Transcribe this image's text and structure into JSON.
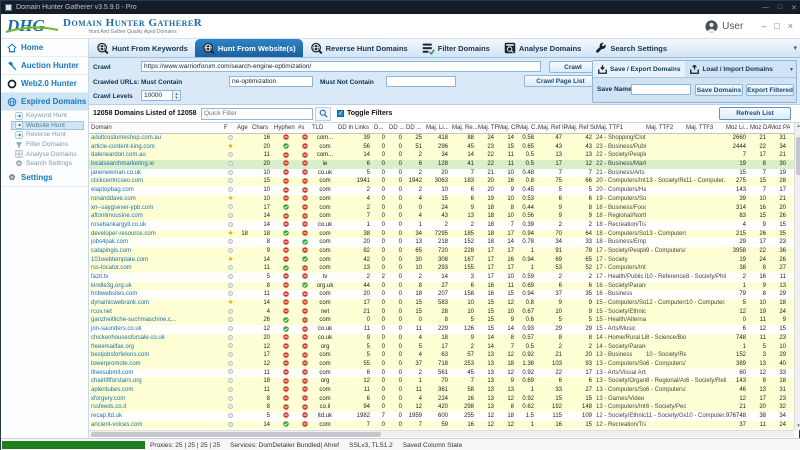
{
  "window": {
    "title": "Domain Hunter Gatherer v3.5.9.0 - Pro"
  },
  "header": {
    "logo_abbr": "DHG",
    "app_name": "Domain Hunter GathereR",
    "tagline": "Hunt And Gather Quality Aged Domains",
    "user_label": "User"
  },
  "colors": {
    "accent_blue": "#1b5f9d",
    "row_yellow": "#ffffd6",
    "row_green": "#d9efc9",
    "progress_green": "#1f7d1f"
  },
  "tabs": [
    {
      "label": "Hunt From Keywords",
      "icon": "web-search",
      "active": false
    },
    {
      "label": "Hunt From Website(s)",
      "icon": "web-search",
      "active": true
    },
    {
      "label": "Reverse Hunt Domains",
      "icon": "web-search",
      "active": false
    },
    {
      "label": "Filter Domains",
      "icon": "filter",
      "active": false
    },
    {
      "label": "Analyse Domains",
      "icon": "analyse",
      "active": false
    },
    {
      "label": "Search Settings",
      "icon": "wrench",
      "active": false
    }
  ],
  "sidebar": [
    {
      "label": "Home",
      "icon": "home",
      "type": "main",
      "active": false
    },
    {
      "label": "Auction Hunter",
      "icon": "gavel",
      "type": "main",
      "active": false
    },
    {
      "label": "Web2.0 Hunter",
      "icon": "ring",
      "type": "main",
      "active": false
    },
    {
      "label": "Expired Domains",
      "icon": "globe",
      "type": "main",
      "active": true
    },
    {
      "label": "Keyword Hunt",
      "icon": "page",
      "type": "sub",
      "active": false
    },
    {
      "label": "Website Hunt",
      "icon": "page",
      "type": "sub",
      "active": true
    },
    {
      "label": "Reverse Hunt",
      "icon": "page",
      "type": "sub",
      "active": false
    },
    {
      "label": "Filter Domains",
      "icon": "funnel",
      "type": "sub",
      "active": false
    },
    {
      "label": "Analyse Domains",
      "icon": "grid",
      "type": "sub",
      "active": false
    },
    {
      "label": "Search Settings",
      "icon": "gear",
      "type": "sub",
      "active": false
    },
    {
      "label": "Settings",
      "icon": "gear",
      "type": "main",
      "active": false
    }
  ],
  "crawl": {
    "crawl_label": "Crawl",
    "url_value": "https://www.warriorforum.com/search-engine-optimization/",
    "crawl_button": "Crawl",
    "must_contain_label": "Crawled URLs: Must Contain",
    "must_contain_value": "ne-optimization",
    "must_not_contain_label": "Must Not Contain",
    "must_not_contain_value": "",
    "crawl_page_list_button": "Crawl Page List",
    "crawl_levels_label": "Crawl Levels",
    "crawl_levels_value": "10000"
  },
  "save_export": {
    "save_tab": "Save / Export Domains",
    "load_tab": "Load / Import Domains",
    "save_name_label": "Save Name",
    "save_name_value": "",
    "save_domains_button": "Save Domains",
    "export_filtered_button": "Export Filtered"
  },
  "filter_bar": {
    "count_text": "12058 Domains Listed of 12058",
    "quick_filter_placeholder": "Quick Filter",
    "toggle_filters_label": "Toggle Filters",
    "toggle_checked": true,
    "refresh_button": "Refresh List"
  },
  "table": {
    "columns": [
      "Domain",
      "F",
      "Age",
      "Chars",
      "Hyphen",
      "#s",
      "TLD",
      "DD In Links",
      "D...",
      "DD ...",
      "DD ...",
      "Maj. Li...",
      "Maj. Re...",
      "Maj. TF",
      "Maj. CF",
      "Maj. C...",
      "Maj. Ref IPs",
      "Maj. Ref Su...",
      "Maj. TTF1",
      "Maj. TTF2",
      "Maj. TTF3",
      "Moz Li...",
      "Moz DA",
      "Moz PA"
    ],
    "rows": [
      [
        "adultcostumeshop.com.au",
        "dot",
        "",
        "16",
        "r",
        "r",
        "com...",
        "39",
        "0",
        "0",
        "25",
        "418",
        "88",
        "24",
        "14",
        "0.58",
        "47",
        "42",
        "24 - Shopping/Clothi...",
        "",
        "",
        "2660",
        "21",
        "31",
        "y"
      ],
      [
        "article-content-king.com",
        "star",
        "",
        "20",
        "g",
        "r",
        "com",
        "56",
        "0",
        "0",
        "51",
        "296",
        "45",
        "23",
        "15",
        "0.65",
        "43",
        "43",
        "23 - Business/Publish...",
        "",
        "",
        "2444",
        "22",
        "34",
        "y"
      ],
      [
        "daleneardon.com.au",
        "dot",
        "",
        "11",
        "r",
        "r",
        "com...",
        "14",
        "0",
        "0",
        "2",
        "34",
        "14",
        "22",
        "11",
        "0.5",
        "13",
        "13",
        "22 - Society/People",
        "",
        "",
        "7",
        "17",
        "21",
        "y"
      ],
      [
        "localsearchmarketing.ie",
        "dot",
        "",
        "20",
        "r",
        "r",
        "ie",
        "6",
        "0",
        "0",
        "6",
        "128",
        "41",
        "22",
        "11",
        "0.5",
        "17",
        "12",
        "22 - Business/Marke...",
        "",
        "",
        "19",
        "8",
        "30",
        "g"
      ],
      [
        "janenewman.co.uk",
        "dot",
        "",
        "10",
        "r",
        "r",
        "co.uk",
        "5",
        "0",
        "0",
        "2",
        "20",
        "7",
        "21",
        "10",
        "0.48",
        "7",
        "7",
        "21 - Business/Arts a...",
        "",
        "",
        "15",
        "7",
        "19",
        "w"
      ],
      [
        "clickcentricseo.com",
        "dot",
        "",
        "15",
        "r",
        "r",
        "com",
        "1941",
        "0",
        "0",
        "1942",
        "3063",
        "183",
        "20",
        "16",
        "0.8",
        "75",
        "66",
        "20 - Computers/Inte...",
        "13 - Society/Rel...",
        "11 - Computer...",
        "275",
        "15",
        "28",
        "y"
      ],
      [
        "elaptopbag.com",
        "dot",
        "",
        "10",
        "r",
        "r",
        "com",
        "2",
        "0",
        "0",
        "2",
        "10",
        "6",
        "20",
        "9",
        "0.45",
        "5",
        "5",
        "20 - Computers/Har...",
        "",
        "",
        "143",
        "7",
        "17",
        "w"
      ],
      [
        "ronanddave.com",
        "star",
        "",
        "10",
        "r",
        "r",
        "com",
        "4",
        "0",
        "0",
        "4",
        "15",
        "6",
        "19",
        "10",
        "0.53",
        "6",
        "6",
        "19 - Computers/Soft...",
        "",
        "",
        "39",
        "10",
        "21",
        "y"
      ],
      [
        "xn--saygsever-ypb.com",
        "dot",
        "",
        "17",
        "g",
        "r",
        "com",
        "2",
        "0",
        "0",
        "0",
        "24",
        "9",
        "18",
        "8",
        "0.44",
        "9",
        "8",
        "18 - Business/Food a...",
        "",
        "",
        "314",
        "16",
        "20",
        "y"
      ],
      [
        "aftonlimousine.com",
        "dot",
        "",
        "14",
        "r",
        "r",
        "com",
        "7",
        "0",
        "0",
        "4",
        "43",
        "13",
        "18",
        "10",
        "0.56",
        "9",
        "9",
        "18 - Regional/North ...",
        "",
        "",
        "83",
        "15",
        "26",
        "y"
      ],
      [
        "rosebankargyll.co.uk",
        "dot",
        "",
        "14",
        "r",
        "r",
        "co.uk",
        "1",
        "0",
        "0",
        "1",
        "2",
        "2",
        "18",
        "7",
        "0.39",
        "2",
        "2",
        "18 - Recreation/Trav...",
        "",
        "",
        "4",
        "9",
        "15",
        "w"
      ],
      [
        "developer-resource.com",
        "star",
        "18",
        "18",
        "g",
        "r",
        "com",
        "38",
        "0",
        "0",
        "34",
        "7295",
        "185",
        "18",
        "17",
        "0.94",
        "70",
        "64",
        "18 - Computers/Soft...",
        "13 - Computers/...",
        "",
        "215",
        "26",
        "35",
        "y"
      ],
      [
        "jobs4pak.com",
        "dot",
        "",
        "8",
        "r",
        "g",
        "com",
        "20",
        "0",
        "0",
        "13",
        "218",
        "152",
        "18",
        "14",
        "0.78",
        "34",
        "33",
        "18 - Business/Emplo...",
        "",
        "",
        "29",
        "17",
        "23",
        "w"
      ],
      [
        "catapingis.com",
        "dot",
        "",
        "9",
        "r",
        "r",
        "com",
        "82",
        "0",
        "0",
        "65",
        "720",
        "228",
        "17",
        "17",
        "1",
        "91",
        "78",
        "17 - Society/People",
        "9 - Computers/I...",
        "",
        "3958",
        "22",
        "36",
        "y"
      ],
      [
        "101webtemplate.com",
        "star",
        "",
        "14",
        "r",
        "g",
        "com",
        "42",
        "0",
        "0",
        "30",
        "308",
        "167",
        "17",
        "16",
        "0.94",
        "69",
        "65",
        "17 - Society",
        "",
        "",
        "19",
        "24",
        "26",
        "y"
      ],
      [
        "rss-locator.com",
        "dot",
        "",
        "11",
        "g",
        "r",
        "com",
        "13",
        "0",
        "0",
        "10",
        "293",
        "155",
        "17",
        "17",
        "1",
        "53",
        "52",
        "17 - Computers/Inter...",
        "",
        "",
        "38",
        "8",
        "27",
        "y"
      ],
      [
        "fazit.tv",
        "dot",
        "",
        "5",
        "r",
        "r",
        "tv",
        "2",
        "2",
        "0",
        "2",
        "14",
        "3",
        "17",
        "10",
        "0.59",
        "2",
        "2",
        "17 - Health/Public H...",
        "10 - Reference/E...",
        "8 - Society/Phil...",
        "2",
        "16",
        "11",
        "w"
      ],
      [
        "kindle3g.org.uk",
        "dot",
        "",
        "8",
        "r",
        "g",
        "org.uk",
        "44",
        "0",
        "0",
        "8",
        "27",
        "6",
        "16",
        "11",
        "0.69",
        "6",
        "6",
        "16 - Society/Paranor...",
        "",
        "",
        "1",
        "9",
        "13",
        "y"
      ],
      [
        "hnbwebsites.com",
        "dot",
        "",
        "11",
        "r",
        "r",
        "com",
        "20",
        "0",
        "0",
        "18",
        "207",
        "158",
        "16",
        "15",
        "0.94",
        "37",
        "35",
        "16 - Business",
        "",
        "",
        "79",
        "8",
        "29",
        "w"
      ],
      [
        "dynamicwebrank.com",
        "star",
        "",
        "14",
        "r",
        "r",
        "com",
        "17",
        "0",
        "0",
        "15",
        "583",
        "10",
        "15",
        "12",
        "0.8",
        "9",
        "9",
        "15 - Computers/Soft...",
        "12 - Computers/...",
        "10 - Computer...",
        "5",
        "10",
        "18",
        "y"
      ],
      [
        "rcuv.net",
        "dot",
        "",
        "4",
        "r",
        "r",
        "net",
        "21",
        "0",
        "0",
        "15",
        "28",
        "10",
        "15",
        "10",
        "0.67",
        "10",
        "9",
        "15 - Society/Ethnicity",
        "",
        "",
        "12",
        "19",
        "24",
        "y"
      ],
      [
        "ganzheitliche-suchmaschine.c...",
        "dot",
        "",
        "26",
        "g",
        "r",
        "com",
        "0",
        "0",
        "0",
        "0",
        "8",
        "5",
        "15",
        "9",
        "0.6",
        "5",
        "5",
        "15 - Health/Alternative",
        "",
        "",
        "0",
        "11",
        "9",
        "y"
      ],
      [
        "jon-saunders.co.uk",
        "dot",
        "",
        "12",
        "g",
        "r",
        "co.uk",
        "11",
        "0",
        "0",
        "11",
        "229",
        "126",
        "15",
        "14",
        "0.93",
        "29",
        "29",
        "15 - Arts/Music",
        "",
        "",
        "6",
        "12",
        "15",
        "w"
      ],
      [
        "chickenhousesforsale.co.uk",
        "dot",
        "",
        "20",
        "r",
        "r",
        "co.uk",
        "9",
        "0",
        "0",
        "4",
        "18",
        "9",
        "14",
        "8",
        "0.57",
        "8",
        "8",
        "14 - Home/Rural Livi...",
        "8 - Science/Biolo...",
        "",
        "748",
        "11",
        "23",
        "y"
      ],
      [
        "freeemailfax.org",
        "dot",
        "",
        "12",
        "r",
        "r",
        "org",
        "5",
        "0",
        "0",
        "5",
        "17",
        "2",
        "14",
        "7",
        "0.5",
        "2",
        "2",
        "14 - Society/Paranor...",
        "",
        "",
        "1",
        "5",
        "10",
        "y"
      ],
      [
        "bestjobsforfelons.com",
        "dot",
        "",
        "17",
        "r",
        "r",
        "com",
        "5",
        "0",
        "0",
        "4",
        "63",
        "57",
        "13",
        "12",
        "0.92",
        "21",
        "20",
        "13 - Business",
        "10 - Society/Reli...",
        "",
        "152",
        "3",
        "29",
        "y"
      ],
      [
        "towerpromote.com",
        "dot",
        "",
        "12",
        "r",
        "r",
        "com",
        "55",
        "0",
        "0",
        "37",
        "718",
        "253",
        "13",
        "18",
        "1.38",
        "103",
        "93",
        "13 - Computers/Soft...",
        "6 - Computers/S...",
        "",
        "389",
        "13",
        "40",
        "y"
      ],
      [
        "ifreesubmit.com",
        "dot",
        "",
        "11",
        "r",
        "r",
        "com",
        "6",
        "0",
        "0",
        "2",
        "561",
        "45",
        "13",
        "12",
        "0.92",
        "22",
        "17",
        "13 - Arts/Visual Arts",
        "",
        "",
        "60",
        "12",
        "33",
        "w"
      ],
      [
        "chairliftforstairs.org",
        "dot",
        "",
        "18",
        "r",
        "r",
        "org",
        "12",
        "0",
        "0",
        "1",
        "70",
        "7",
        "13",
        "9",
        "0.69",
        "6",
        "6",
        "13 - Society/Organiz...",
        "8 - Regional/Asia",
        "6 - Society/Reli...",
        "143",
        "8",
        "18",
        "y"
      ],
      [
        "aplentubes.com",
        "dot",
        "",
        "11",
        "r",
        "r",
        "com",
        "11",
        "0",
        "0",
        "11",
        "361",
        "58",
        "13",
        "13",
        "1",
        "33",
        "27",
        "13 - Computers/Soft...",
        "6 - Computers/S...",
        "",
        "46",
        "13",
        "31",
        "y"
      ],
      [
        "xforgery.com",
        "dot",
        "",
        "8",
        "r",
        "r",
        "com",
        "6",
        "0",
        "0",
        "4",
        "224",
        "16",
        "13",
        "12",
        "0.92",
        "15",
        "15",
        "13 - Games/Video G...",
        "",
        "",
        "12",
        "17",
        "23",
        "y"
      ],
      [
        "rssfeeds.co.il",
        "dot",
        "",
        "8",
        "r",
        "r",
        "co.il",
        "94",
        "0",
        "0",
        "12",
        "420",
        "298",
        "13",
        "8",
        "0.62",
        "192",
        "148",
        "13 - Computers/Inter...",
        "6 - Society/People",
        "",
        "21",
        "20",
        "32",
        "y"
      ],
      [
        "recap.ltd.uk",
        "dot",
        "",
        "5",
        "r",
        "r",
        "ltd.uk",
        "1982",
        "7",
        "0",
        "1959",
        "600",
        "255",
        "12",
        "18",
        "1.5",
        "115",
        "109",
        "12 - Society/Ethnicity",
        "11 - Society/Gen...",
        "10 - Computer...",
        "976748",
        "38",
        "34",
        "w"
      ],
      [
        "ancient-voices.com",
        "dot",
        "",
        "14",
        "g",
        "r",
        "com",
        "7",
        "0",
        "0",
        "7",
        "59",
        "16",
        "12",
        "12",
        "1",
        "16",
        "15",
        "12 - Recreation/Travel",
        "",
        "",
        "37",
        "11",
        "24",
        "y"
      ]
    ]
  },
  "status_bar": {
    "segments": [
      "Proxies: 25 | 25 | 25 | 25",
      "Services: DomDetailer Bundled| Ahref",
      "SSLv3, TLS1.2",
      "Saved Column State"
    ]
  }
}
